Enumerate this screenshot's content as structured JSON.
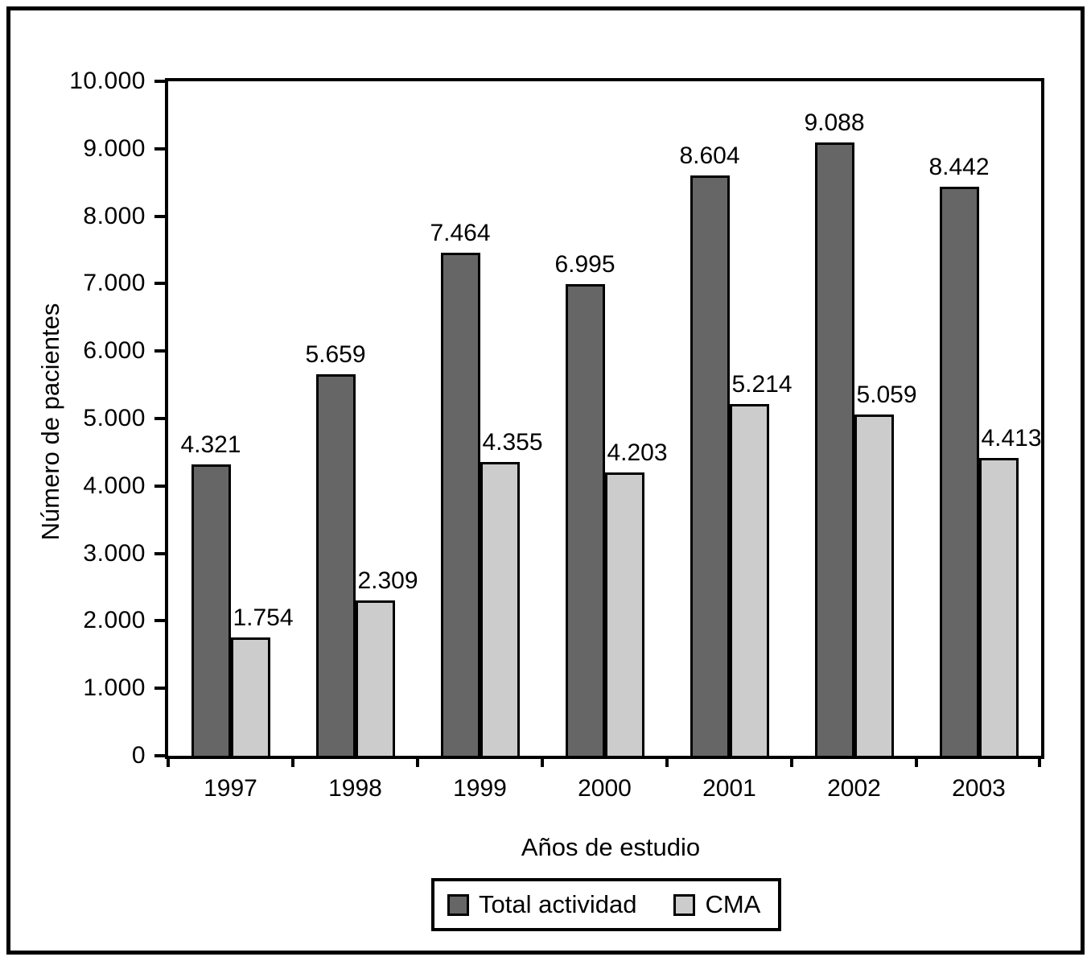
{
  "chart_data": {
    "type": "bar",
    "title": "",
    "xlabel": "Años de estudio",
    "ylabel": "Número de pacientes",
    "categories": [
      "1997",
      "1998",
      "1999",
      "2000",
      "2001",
      "2002",
      "2003"
    ],
    "series": [
      {
        "name": "Total actividad",
        "color": "#666666",
        "values": [
          4321,
          5659,
          7464,
          6995,
          8604,
          9088,
          8442
        ],
        "labels": [
          "4.321",
          "5.659",
          "7.464",
          "6.995",
          "8.604",
          "9.088",
          "8.442"
        ]
      },
      {
        "name": "CMA",
        "color": "#cccccc",
        "values": [
          1754,
          2309,
          4355,
          4203,
          5214,
          5059,
          4413
        ],
        "labels": [
          "1.754",
          "2.309",
          "4.355",
          "4.203",
          "5.214",
          "5.059",
          "4.413"
        ]
      }
    ],
    "ylim": [
      0,
      10000
    ],
    "y_tick_step": 1000,
    "y_tick_labels": [
      "0",
      "1.000",
      "2.000",
      "3.000",
      "4.000",
      "5.000",
      "6.000",
      "7.000",
      "8.000",
      "9.000",
      "10.000"
    ],
    "grid": false,
    "legend_position": "bottom-center",
    "bar_border_color": "#000000"
  }
}
